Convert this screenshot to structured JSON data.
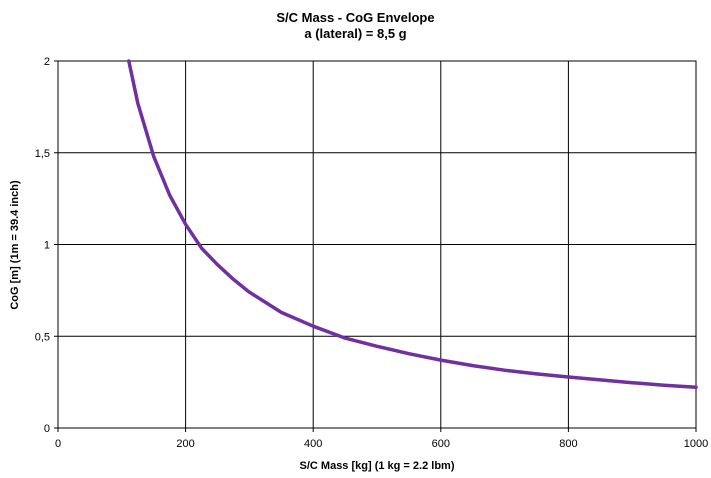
{
  "chart_data": {
    "type": "line",
    "title": "S/C Mass - CoG Envelope",
    "subtitle": "a (lateral) = 8,5 g",
    "xlabel": "S/C Mass [kg]  (1 kg = 2.2 lbm)",
    "ylabel": "CoG [m] (1m = 39.4 inch)",
    "xlim": [
      0,
      1000
    ],
    "ylim": [
      0,
      2
    ],
    "x_ticks": [
      0,
      200,
      400,
      600,
      800,
      1000
    ],
    "x_tick_labels": [
      "0",
      "200",
      "400",
      "600",
      "800",
      "1000"
    ],
    "y_ticks": [
      0,
      0.5,
      1,
      1.5,
      2
    ],
    "y_tick_labels": [
      "0",
      "0,5",
      "1",
      "1,5",
      "2"
    ],
    "grid": true,
    "series": [
      {
        "color": "#7030a0",
        "x": [
          111,
          125,
          150,
          175,
          200,
          225,
          250,
          275,
          300,
          350,
          400,
          450,
          500,
          550,
          600,
          650,
          700,
          750,
          800,
          850,
          900,
          950,
          1000
        ],
        "y": [
          2.0,
          1.77,
          1.48,
          1.27,
          1.11,
          0.98,
          0.89,
          0.81,
          0.74,
          0.63,
          0.555,
          0.49,
          0.445,
          0.405,
          0.37,
          0.34,
          0.315,
          0.295,
          0.278,
          0.262,
          0.247,
          0.233,
          0.222
        ]
      }
    ]
  }
}
